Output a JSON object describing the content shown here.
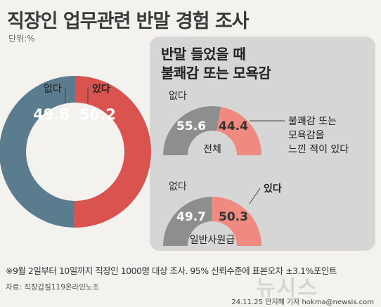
{
  "title": "직장인 업무관련 반말 경험 조사",
  "unit": "단위:%",
  "colors": {
    "yes": "#d9534f",
    "no": "#5b7c8f",
    "gauge_yes": "#f08a80",
    "gauge_no": "#8e8e8e",
    "panel": "#d6d6d6"
  },
  "panel_title": {
    "line1": "반말 들었을 때",
    "line2": "불쾌감 또는 모욕감"
  },
  "chart_data": [
    {
      "type": "pie",
      "categories": [
        "없다",
        "있다"
      ],
      "values": [
        49.8,
        50.2
      ]
    },
    {
      "type": "pie",
      "center_label": "전체",
      "categories": [
        "없다",
        "불쾌감 또는 모욕감을 느낀 적이 있다"
      ],
      "values": [
        55.6,
        44.4
      ],
      "annotation": [
        "불쾌감 또는",
        "모욕감을",
        "느낀 적이 있다"
      ]
    },
    {
      "type": "pie",
      "center_label": "일반사원급",
      "categories": [
        "없다",
        "있다"
      ],
      "values": [
        49.7,
        50.3
      ]
    }
  ],
  "footnote": "※9월 2일부터 10일까지 직장인 1000명 대상 조사. 95% 신뢰수준에 표본오차 ±3.1%포인트",
  "source": "자료: 직장갑질119온라인노조",
  "credit": "24.11.25 안지혜 기자 hokma@newsis.com",
  "watermark": "뉴시스"
}
